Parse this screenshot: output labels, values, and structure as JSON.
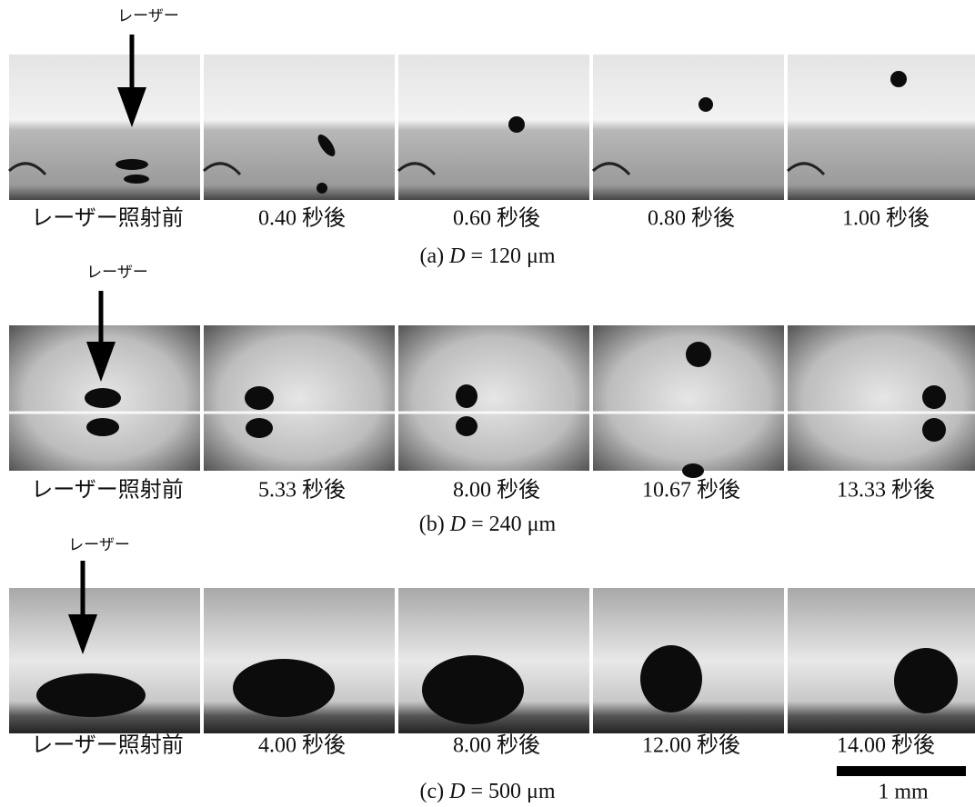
{
  "rows": [
    {
      "laser": "レーザー",
      "frames": [
        "レーザー照射前",
        "0.40 秒後",
        "0.60 秒後",
        "0.80 秒後",
        "1.00 秒後"
      ],
      "caption": {
        "label": "(a)",
        "variable": "D",
        "value": "= 120 μm"
      }
    },
    {
      "laser": "レーザー",
      "frames": [
        "レーザー照射前",
        "5.33 秒後",
        "8.00 秒後",
        "10.67 秒後",
        "13.33 秒後"
      ],
      "caption": {
        "label": "(b)",
        "variable": "D",
        "value": "= 240 μm"
      }
    },
    {
      "laser": "レーザー",
      "frames": [
        "レーザー照射前",
        "4.00 秒後",
        "8.00 秒後",
        "12.00 秒後",
        "14.00 秒後"
      ],
      "caption": {
        "label": "(c)",
        "variable": "D",
        "value": "= 500 μm"
      }
    }
  ],
  "scale_bar": "1 mm"
}
